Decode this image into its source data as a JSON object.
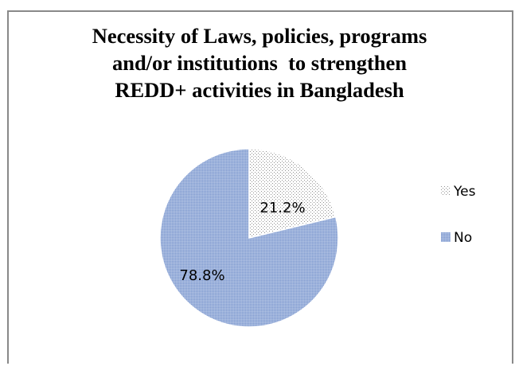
{
  "chart_data": {
    "type": "pie",
    "title_lines": [
      "Necessity of Laws, policies, programs",
      "and/or institutions  to strengthen",
      "REDD+ activities in Bangladesh"
    ],
    "categories": [
      "Yes",
      "No"
    ],
    "values": [
      21.2,
      78.8
    ],
    "data_labels": [
      "21.2%",
      "78.8%"
    ],
    "legend_position": "right",
    "colors": {
      "Yes": "#ffffff",
      "No": "#95add8"
    },
    "patterns": {
      "Yes": "dotted",
      "No": "dense-dotted"
    }
  }
}
